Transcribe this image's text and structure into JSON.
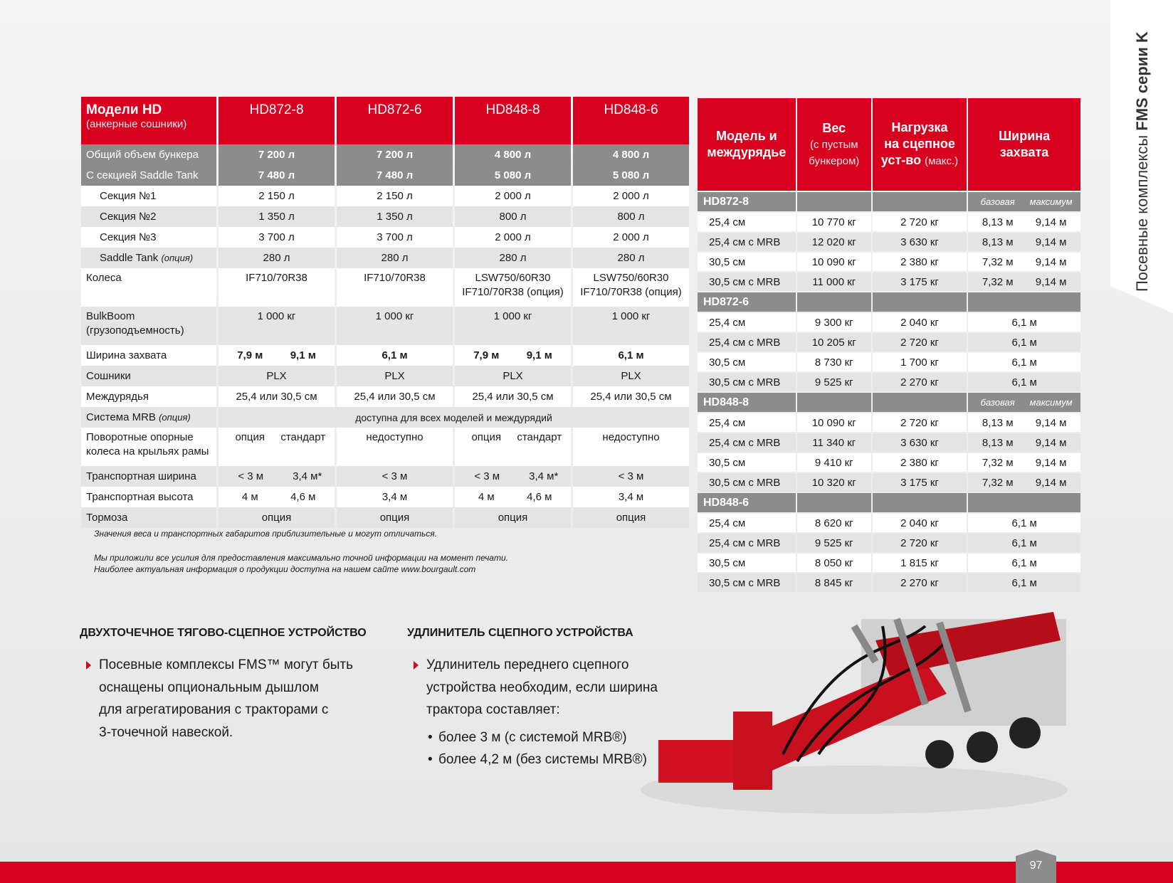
{
  "side_tab": {
    "text": "Посевные комплексы",
    "bold": "FMS серии K"
  },
  "spec_table": {
    "header": {
      "label": "Модели HD",
      "sublabel": "(анкерные сошники)",
      "models": [
        "HD872-8",
        "HD872-6",
        "HD848-8",
        "HD848-6"
      ]
    },
    "bunker_rows": [
      {
        "label": "Общий объем бункера",
        "cells": [
          "7 200 л",
          "7 200 л",
          "4 800 л",
          "4 800 л"
        ]
      },
      {
        "label": "С секцией Saddle Tank",
        "cells": [
          "7 480 л",
          "7 480 л",
          "5 080 л",
          "5 080 л"
        ]
      }
    ],
    "rows": [
      {
        "label": "Секция №1",
        "cells": [
          "2 150 л",
          "2 150 л",
          "2 000 л",
          "2 000 л"
        ]
      },
      {
        "label": "Секция №2",
        "cells": [
          "1 350 л",
          "1 350 л",
          "800 л",
          "800 л"
        ]
      },
      {
        "label": "Секция №3",
        "cells": [
          "3 700 л",
          "3 700 л",
          "2 000 л",
          "2 000 л"
        ]
      },
      {
        "label": "Saddle Tank",
        "label_note": "(опция)",
        "cells": [
          "280 л",
          "280 л",
          "280 л",
          "280 л"
        ]
      },
      {
        "label": "Колеса",
        "cells": [
          "IF710/70R38",
          "IF710/70R38",
          "LSW750/60R30\nIF710/70R38 (опция)",
          "LSW750/60R30\nIF710/70R38 (опция)"
        ]
      },
      {
        "label": "BulkBoom\n(грузоподъемность)",
        "cells": [
          "1 000 кг",
          "1 000 кг",
          "1 000 кг",
          "1 000 кг"
        ]
      },
      {
        "label": "Ширина захвата",
        "cells": [
          [
            "7,9 м",
            "9,1 м"
          ],
          "6,1 м",
          [
            "7,9 м",
            "9,1 м"
          ],
          "6,1 м"
        ]
      },
      {
        "label": "Сошники",
        "cells": [
          "PLX",
          "PLX",
          "PLX",
          "PLX"
        ]
      },
      {
        "label": "Междурядья",
        "cells": [
          "25,4 или 30,5 см",
          "25,4 или 30,5 см",
          "25,4 или 30,5 см",
          "25,4 или 30,5 см"
        ]
      },
      {
        "label": "Система MRB",
        "label_note": "(опция)",
        "all": "доступна для всех моделей и междурядий"
      },
      {
        "label": "Поворотные опорные\nколеса на крыльях рамы",
        "cells": [
          [
            "опция",
            "стандарт"
          ],
          "недоступно",
          [
            "опция",
            "стандарт"
          ],
          "недоступно"
        ]
      },
      {
        "label": "Транспортная ширина",
        "cells": [
          [
            "< 3 м",
            "3,4 м*"
          ],
          "< 3 м",
          [
            "< 3 м",
            "3,4 м*"
          ],
          "< 3 м"
        ]
      },
      {
        "label": "Транспортная высота",
        "cells": [
          [
            "4 м",
            "4,6 м"
          ],
          "3,4 м",
          [
            "4 м",
            "4,6 м"
          ],
          "3,4 м"
        ]
      },
      {
        "label": "Тормоза",
        "cells": [
          "опция",
          "опция",
          "опция",
          "опция"
        ]
      }
    ]
  },
  "notes": [
    "Значения веса и транспортных габаритов приблизительные и могут отличаться.",
    "Мы приложили все усилия для предоставления максимально точной информации на момент печати.",
    "Наиболее актуальная информация о продукции доступна на нашем сайте www.bourgault.com"
  ],
  "weight_table": {
    "header": {
      "model": "Модель и\nмеждурядье",
      "weight": "Вес",
      "weight_note": "(с пустым\nбункером)",
      "load": "Нагрузка\nна сцепное\nуст-во",
      "load_note": "(макс.)",
      "width": "Ширина\nзахвата"
    },
    "groups": [
      {
        "model": "HD872-8",
        "width_labels": [
          "базовая",
          "максимум"
        ],
        "rows": [
          {
            "spacing": "25,4 см",
            "weight": "10 770 кг",
            "load": "2 720 кг",
            "width": [
              "8,13 м",
              "9,14 м"
            ]
          },
          {
            "spacing": "25,4 см с MRB",
            "weight": "12 020 кг",
            "load": "3 630 кг",
            "width": [
              "8,13 м",
              "9,14 м"
            ]
          },
          {
            "spacing": "30,5 см",
            "weight": "10 090 кг",
            "load": "2 380 кг",
            "width": [
              "7,32 м",
              "9,14 м"
            ]
          },
          {
            "spacing": "30,5 см с MRB",
            "weight": "11 000 кг",
            "load": "3 175 кг",
            "width": [
              "7,32 м",
              "9,14 м"
            ]
          }
        ]
      },
      {
        "model": "HD872-6",
        "rows": [
          {
            "spacing": "25,4 см",
            "weight": "9 300 кг",
            "load": "2 040 кг",
            "width": "6,1 м"
          },
          {
            "spacing": "25,4 см с MRB",
            "weight": "10 205 кг",
            "load": "2 720 кг",
            "width": "6,1 м"
          },
          {
            "spacing": "30,5 см",
            "weight": "8 730 кг",
            "load": "1 700 кг",
            "width": "6,1 м"
          },
          {
            "spacing": "30,5 см с MRB",
            "weight": "9 525 кг",
            "load": "2 270 кг",
            "width": "6,1 м"
          }
        ]
      },
      {
        "model": "HD848-8",
        "width_labels": [
          "базовая",
          "максимум"
        ],
        "rows": [
          {
            "spacing": "25,4 см",
            "weight": "10 090 кг",
            "load": "2 720 кг",
            "width": [
              "8,13 м",
              "9,14 м"
            ]
          },
          {
            "spacing": "25,4 см с MRB",
            "weight": "11 340 кг",
            "load": "3 630 кг",
            "width": [
              "8,13 м",
              "9,14 м"
            ]
          },
          {
            "spacing": "30,5 см",
            "weight": "9 410 кг",
            "load": "2 380 кг",
            "width": [
              "7,32 м",
              "9,14 м"
            ]
          },
          {
            "spacing": "30,5 см с MRB",
            "weight": "10 320 кг",
            "load": "3 175 кг",
            "width": [
              "7,32 м",
              "9,14 м"
            ]
          }
        ]
      },
      {
        "model": "HD848-6",
        "rows": [
          {
            "spacing": "25,4 см",
            "weight": "8 620 кг",
            "load": "2 040 кг",
            "width": "6,1 м"
          },
          {
            "spacing": "25,4 см с MRB",
            "weight": "9 525 кг",
            "load": "2 720 кг",
            "width": "6,1 м"
          },
          {
            "spacing": "30,5 см",
            "weight": "8 050 кг",
            "load": "1 815 кг",
            "width": "6,1 м"
          },
          {
            "spacing": "30,5 см с MRB",
            "weight": "8 845 кг",
            "load": "2 270 кг",
            "width": "6,1 м"
          }
        ]
      }
    ]
  },
  "sections": [
    {
      "title": "ДВУХТОЧЕЧНОЕ ТЯГОВО-СЦЕПНОЕ УСТРОЙСТВО",
      "lines": [
        "Посевные комплексы FMS™ могут быть",
        "оснащены опциональным дышлом",
        "для агрегатирования с тракторами с",
        "3-точечной навеской."
      ]
    },
    {
      "title": "УДЛИНИТЕЛЬ СЦЕПНОГО УСТРОЙСТВА",
      "lines": [
        "Удлинитель переднего сцепного",
        "устройства необходим, если ширина",
        "трактора составляет:"
      ],
      "items": [
        "более 3 м (с системой MRB®)",
        "более 4,2 м (без системы MRB®)"
      ]
    }
  ],
  "page_number": "97"
}
